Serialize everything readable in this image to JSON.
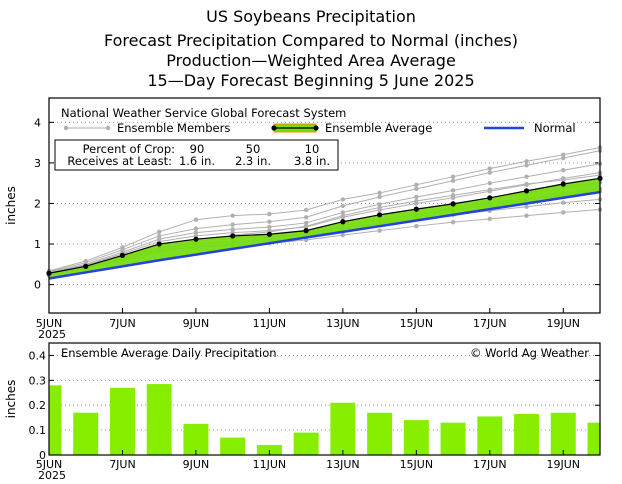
{
  "header": {
    "title_1": "US Soybeans Precipitation",
    "title_2": "Forecast Precipitation Compared to Normal (inches)",
    "title_3": "Production—Weighted Area Average",
    "title_4": "15—Day Forecast Beginning 5 June 2025"
  },
  "colors": {
    "normal": "#2244dd",
    "ensemble_fill": "#77dd11",
    "members": "#b0b0b0",
    "average": "#000000",
    "bars": "#88ee00",
    "average_band_edge": "#ff8800"
  },
  "chart_data": [
    {
      "type": "line",
      "title": "National Weather Service Global Forecast System",
      "ylabel": "inches",
      "ylim": [
        -0.7,
        4.6
      ],
      "yticks": [
        0,
        1,
        2,
        3,
        4
      ],
      "x": [
        0,
        1,
        2,
        3,
        4,
        5,
        6,
        7,
        8,
        9,
        10,
        11,
        12,
        13,
        14,
        15
      ],
      "xtick_labels": [
        "5JUN",
        "7JUN",
        "9JUN",
        "11JUN",
        "13JUN",
        "15JUN",
        "17JUN",
        "19JUN"
      ],
      "xtick_positions": [
        0,
        2,
        4,
        6,
        8,
        10,
        12,
        14
      ],
      "year_label": "2025",
      "legend": {
        "members": "Ensemble Members",
        "average": "Ensemble Average",
        "normal": "Normal"
      },
      "percent_table": {
        "row1_label": "Percent of Crop:",
        "row2_label": "Receives at Least:",
        "columns": [
          {
            "pct": "90",
            "amount": "1.6 in."
          },
          {
            "pct": "50",
            "amount": "2.3 in."
          },
          {
            "pct": "10",
            "amount": "3.8 in."
          }
        ]
      },
      "series": [
        {
          "name": "Ensemble Average",
          "values": [
            0.28,
            0.45,
            0.72,
            1.0,
            1.12,
            1.2,
            1.24,
            1.33,
            1.55,
            1.72,
            1.86,
            1.99,
            2.14,
            2.31,
            2.48,
            2.62
          ]
        },
        {
          "name": "Normal",
          "values": [
            0.15,
            0.3,
            0.45,
            0.6,
            0.74,
            0.88,
            1.02,
            1.16,
            1.3,
            1.44,
            1.58,
            1.72,
            1.86,
            2.0,
            2.14,
            2.28
          ]
        },
        {
          "name": "Ensemble Member 1",
          "values": [
            0.22,
            0.38,
            0.6,
            0.82,
            0.92,
            0.98,
            1.02,
            1.1,
            1.22,
            1.33,
            1.44,
            1.54,
            1.62,
            1.7,
            1.78,
            1.85
          ]
        },
        {
          "name": "Ensemble Member 2",
          "values": [
            0.25,
            0.42,
            0.66,
            0.9,
            1.0,
            1.06,
            1.1,
            1.18,
            1.36,
            1.5,
            1.62,
            1.72,
            1.82,
            1.92,
            2.02,
            2.1
          ]
        },
        {
          "name": "Ensemble Member 3",
          "values": [
            0.27,
            0.44,
            0.7,
            0.96,
            1.08,
            1.14,
            1.18,
            1.26,
            1.46,
            1.6,
            1.72,
            1.84,
            1.96,
            2.08,
            2.2,
            2.3
          ]
        },
        {
          "name": "Ensemble Member 4",
          "values": [
            0.28,
            0.46,
            0.72,
            1.0,
            1.12,
            1.2,
            1.25,
            1.34,
            1.55,
            1.72,
            1.86,
            2.0,
            2.12,
            2.26,
            2.4,
            2.52
          ]
        },
        {
          "name": "Ensemble Member 5",
          "values": [
            0.29,
            0.48,
            0.76,
            1.06,
            1.2,
            1.28,
            1.33,
            1.42,
            1.66,
            1.84,
            2.0,
            2.14,
            2.3,
            2.46,
            2.62,
            2.76
          ]
        },
        {
          "name": "Ensemble Member 6",
          "values": [
            0.3,
            0.5,
            0.8,
            1.12,
            1.28,
            1.36,
            1.42,
            1.52,
            1.78,
            1.98,
            2.16,
            2.32,
            2.5,
            2.66,
            2.82,
            2.98
          ]
        },
        {
          "name": "Ensemble Member 7",
          "values": [
            0.32,
            0.54,
            0.86,
            1.2,
            1.38,
            1.48,
            1.55,
            1.66,
            1.94,
            2.16,
            2.36,
            2.56,
            2.76,
            2.94,
            3.12,
            3.3
          ]
        },
        {
          "name": "Ensemble Member 8",
          "values": [
            0.34,
            0.58,
            0.92,
            1.3,
            1.6,
            1.7,
            1.74,
            1.84,
            2.1,
            2.26,
            2.46,
            2.66,
            2.86,
            3.04,
            3.2,
            3.38
          ]
        },
        {
          "name": "Ensemble Member 9",
          "values": [
            0.26,
            0.44,
            0.64,
            0.88,
            1.04,
            1.22,
            1.3,
            1.44,
            1.7,
            1.9,
            2.06,
            2.2,
            2.34,
            2.48,
            2.58,
            2.7
          ]
        },
        {
          "name": "Ensemble Member 10",
          "values": [
            0.24,
            0.4,
            0.62,
            0.84,
            0.94,
            1.0,
            1.16,
            1.24,
            1.4,
            1.52,
            1.66,
            1.9,
            2.02,
            2.12,
            2.22,
            2.36
          ]
        }
      ]
    },
    {
      "type": "bar",
      "title": "Ensemble Average Daily Precipitation",
      "credit": "© World Ag Weather",
      "ylabel": "inches",
      "ylim": [
        0,
        0.45
      ],
      "ytick_labels": [
        "0",
        "0.1",
        "0.2",
        "0.3",
        "0.4"
      ],
      "yticks": [
        0,
        0.1,
        0.2,
        0.3,
        0.4
      ],
      "categories": [
        "5JUN",
        "6JUN",
        "7JUN",
        "8JUN",
        "9JUN",
        "10JUN",
        "11JUN",
        "12JUN",
        "13JUN",
        "14JUN",
        "15JUN",
        "16JUN",
        "17JUN",
        "18JUN",
        "19JUN",
        "20JUN"
      ],
      "xtick_labels": [
        "5JUN",
        "7JUN",
        "9JUN",
        "11JUN",
        "13JUN",
        "15JUN",
        "17JUN",
        "19JUN"
      ],
      "xtick_positions": [
        0,
        2,
        4,
        6,
        8,
        10,
        12,
        14
      ],
      "year_label": "2025",
      "values": [
        0.28,
        0.17,
        0.27,
        0.285,
        0.125,
        0.07,
        0.04,
        0.09,
        0.21,
        0.17,
        0.14,
        0.13,
        0.155,
        0.165,
        0.17,
        0.13
      ]
    }
  ]
}
